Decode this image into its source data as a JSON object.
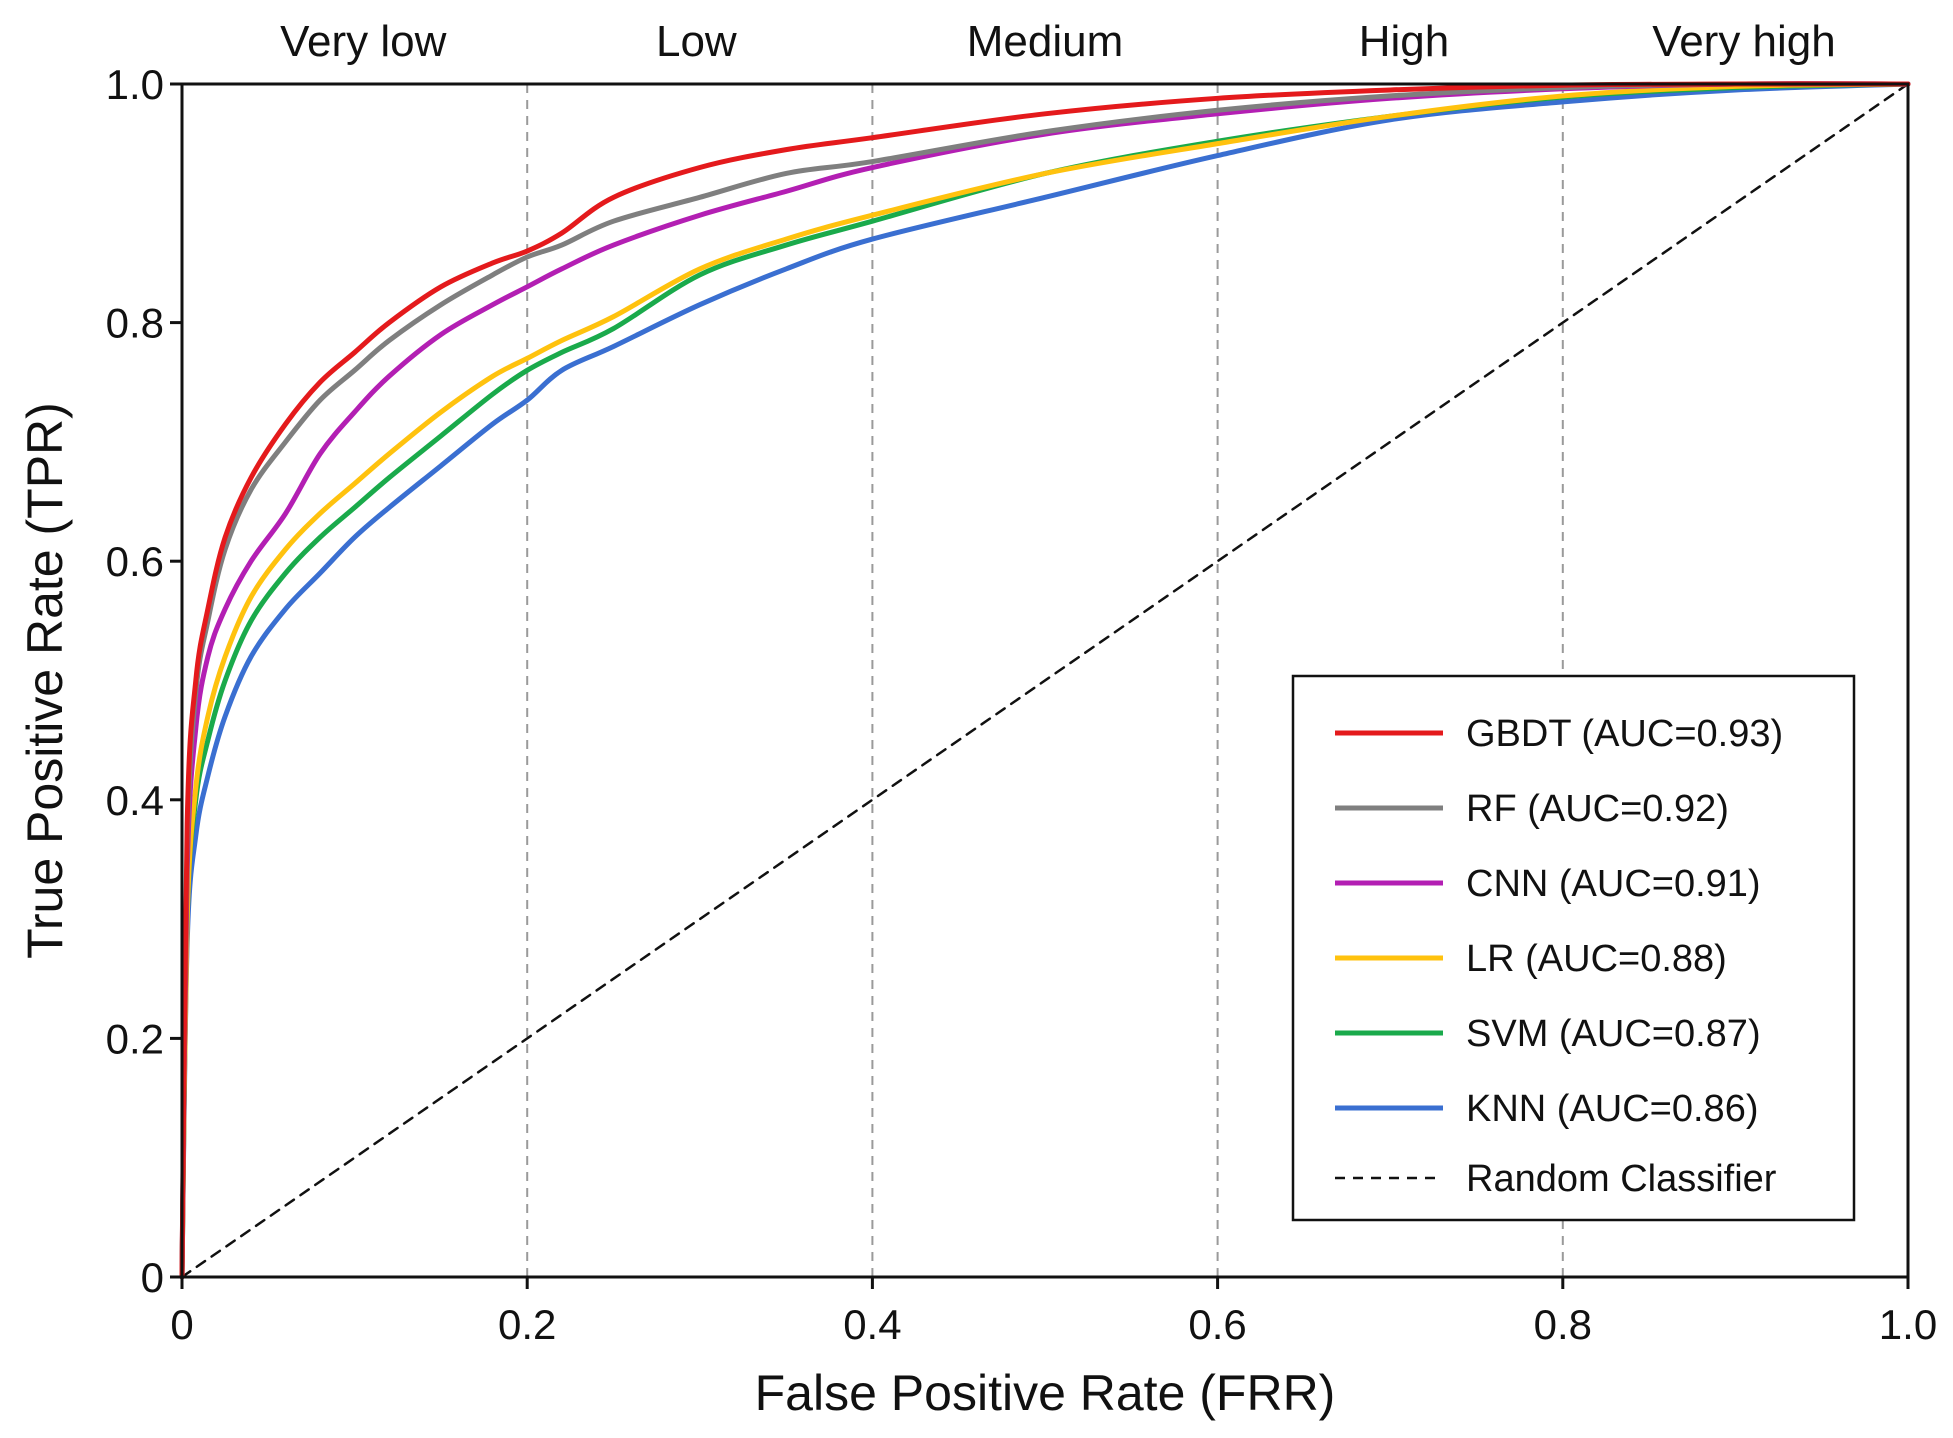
{
  "chart_data": {
    "type": "line",
    "title": "",
    "xlabel": "False Positive Rate (FRR)",
    "ylabel": "True Positive Rate (TPR)",
    "xlim": [
      0,
      1
    ],
    "ylim": [
      0,
      1
    ],
    "x_ticks": [
      0,
      0.2,
      0.4,
      0.6,
      0.8,
      1.0
    ],
    "x_tick_labels": [
      "0",
      "0.2",
      "0.4",
      "0.6",
      "0.8",
      "1.0"
    ],
    "y_ticks": [
      0,
      0.2,
      0.4,
      0.6,
      0.8,
      1.0
    ],
    "y_tick_labels": [
      "0",
      "0.2",
      "0.4",
      "0.6",
      "0.8",
      "1.0"
    ],
    "vertical_dividers": [
      0.2,
      0.4,
      0.6,
      0.8
    ],
    "regions": [
      {
        "label": "Very low",
        "x_center": 0.105
      },
      {
        "label": "Low",
        "x_center": 0.298
      },
      {
        "label": "Medium",
        "x_center": 0.5
      },
      {
        "label": "High",
        "x_center": 0.708
      },
      {
        "label": "Very high",
        "x_center": 0.905
      }
    ],
    "legend_position": "lower-right",
    "series": [
      {
        "name": "GBDT (AUC=0.93)",
        "color": "#e41a1c",
        "x": [
          0,
          0.003,
          0.008,
          0.015,
          0.025,
          0.04,
          0.06,
          0.08,
          0.1,
          0.12,
          0.15,
          0.18,
          0.2,
          0.22,
          0.25,
          0.3,
          0.35,
          0.4,
          0.5,
          0.6,
          0.7,
          0.8,
          0.9,
          1.0
        ],
        "y": [
          0,
          0.38,
          0.5,
          0.56,
          0.62,
          0.67,
          0.715,
          0.75,
          0.775,
          0.8,
          0.83,
          0.85,
          0.86,
          0.875,
          0.905,
          0.93,
          0.945,
          0.955,
          0.975,
          0.988,
          0.995,
          0.999,
          1.0,
          1.0
        ]
      },
      {
        "name": "RF (AUC=0.92)",
        "color": "#7f7f7f",
        "x": [
          0,
          0.003,
          0.008,
          0.015,
          0.025,
          0.04,
          0.06,
          0.08,
          0.1,
          0.12,
          0.15,
          0.18,
          0.2,
          0.22,
          0.25,
          0.3,
          0.35,
          0.4,
          0.5,
          0.6,
          0.7,
          0.8,
          0.9,
          1.0
        ],
        "y": [
          0,
          0.36,
          0.49,
          0.55,
          0.61,
          0.66,
          0.7,
          0.735,
          0.76,
          0.785,
          0.815,
          0.84,
          0.855,
          0.865,
          0.885,
          0.905,
          0.925,
          0.935,
          0.96,
          0.978,
          0.99,
          0.997,
          1.0,
          1.0
        ]
      },
      {
        "name": "CNN (AUC=0.91)",
        "color": "#b31fb3",
        "x": [
          0,
          0.003,
          0.008,
          0.015,
          0.025,
          0.04,
          0.06,
          0.08,
          0.1,
          0.12,
          0.15,
          0.18,
          0.2,
          0.22,
          0.25,
          0.3,
          0.35,
          0.4,
          0.5,
          0.6,
          0.7,
          0.8,
          0.9,
          1.0
        ],
        "y": [
          0,
          0.34,
          0.46,
          0.52,
          0.56,
          0.6,
          0.64,
          0.69,
          0.725,
          0.755,
          0.79,
          0.815,
          0.83,
          0.845,
          0.865,
          0.89,
          0.91,
          0.93,
          0.958,
          0.975,
          0.988,
          0.996,
          1.0,
          1.0
        ]
      },
      {
        "name": "LR (AUC=0.88)",
        "color": "#ffc20e",
        "x": [
          0,
          0.003,
          0.008,
          0.015,
          0.025,
          0.04,
          0.06,
          0.08,
          0.1,
          0.12,
          0.15,
          0.18,
          0.2,
          0.22,
          0.25,
          0.3,
          0.35,
          0.4,
          0.5,
          0.6,
          0.7,
          0.8,
          0.9,
          1.0
        ],
        "y": [
          0,
          0.3,
          0.41,
          0.47,
          0.52,
          0.57,
          0.61,
          0.64,
          0.665,
          0.69,
          0.725,
          0.755,
          0.77,
          0.785,
          0.805,
          0.845,
          0.87,
          0.89,
          0.925,
          0.95,
          0.973,
          0.99,
          0.998,
          1.0
        ]
      },
      {
        "name": "SVM (AUC=0.87)",
        "color": "#1aaa4b",
        "x": [
          0,
          0.003,
          0.008,
          0.015,
          0.025,
          0.04,
          0.06,
          0.08,
          0.1,
          0.12,
          0.15,
          0.18,
          0.2,
          0.22,
          0.25,
          0.3,
          0.35,
          0.4,
          0.5,
          0.6,
          0.7,
          0.8,
          0.9,
          1.0
        ],
        "y": [
          0,
          0.3,
          0.4,
          0.45,
          0.5,
          0.55,
          0.59,
          0.62,
          0.645,
          0.67,
          0.705,
          0.74,
          0.76,
          0.775,
          0.795,
          0.84,
          0.865,
          0.885,
          0.925,
          0.952,
          0.973,
          0.989,
          0.997,
          1.0
        ]
      },
      {
        "name": "KNN (AUC=0.86)",
        "color": "#3a6fd1",
        "x": [
          0,
          0.003,
          0.008,
          0.015,
          0.025,
          0.04,
          0.06,
          0.08,
          0.1,
          0.12,
          0.15,
          0.18,
          0.2,
          0.22,
          0.25,
          0.3,
          0.35,
          0.4,
          0.5,
          0.6,
          0.7,
          0.8,
          0.9,
          1.0
        ],
        "y": [
          0,
          0.28,
          0.37,
          0.42,
          0.47,
          0.52,
          0.56,
          0.59,
          0.62,
          0.645,
          0.68,
          0.715,
          0.735,
          0.76,
          0.78,
          0.815,
          0.845,
          0.87,
          0.905,
          0.94,
          0.97,
          0.985,
          0.995,
          1.0
        ]
      },
      {
        "name": "Random Classifier",
        "color": "#111111",
        "dashed": true,
        "x": [
          0,
          1
        ],
        "y": [
          0,
          1
        ]
      }
    ]
  }
}
